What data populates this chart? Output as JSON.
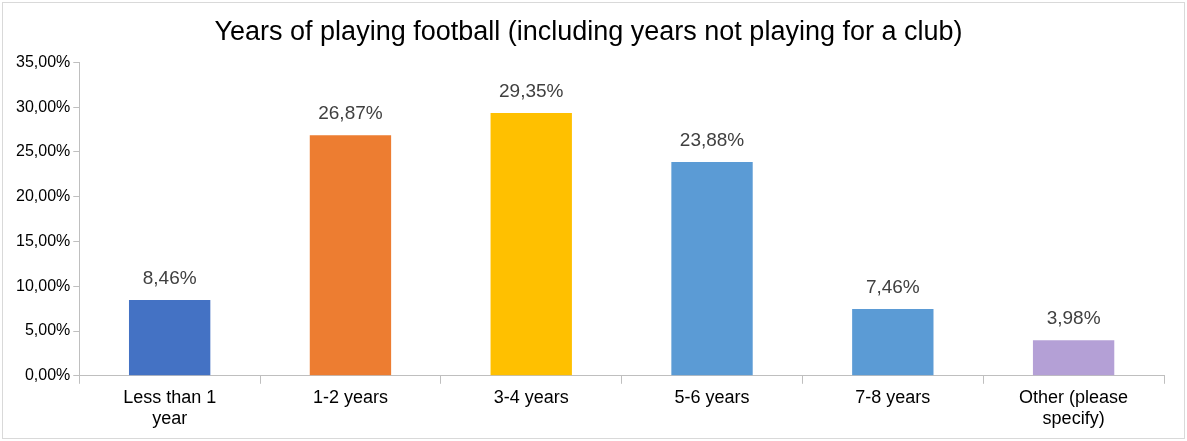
{
  "chart_data": {
    "type": "bar",
    "title": "Years of playing football (including years not playing for a club)",
    "categories": [
      "Less than 1 year",
      "1-2 years",
      "3-4 years",
      "5-6 years",
      "7-8 years",
      "Other (please specify)"
    ],
    "values": [
      8.46,
      26.87,
      29.35,
      23.88,
      7.46,
      3.98
    ],
    "colors": [
      "#4472c4",
      "#ed7d31",
      "#ffc000",
      "#5b9bd5",
      "#5b9bd5",
      "#b4a0d6"
    ],
    "value_labels": [
      "8,46%",
      "26,87%",
      "29,35%",
      "23,88%",
      "7,46%",
      "3,98%"
    ],
    "ylim": [
      0,
      35
    ],
    "yticks": [
      {
        "value": 0,
        "label": "0,00%"
      },
      {
        "value": 5,
        "label": "5,00%"
      },
      {
        "value": 10,
        "label": "10,00%"
      },
      {
        "value": 15,
        "label": "15,00%"
      },
      {
        "value": 20,
        "label": "20,00%"
      },
      {
        "value": 25,
        "label": "25,00%"
      },
      {
        "value": 30,
        "label": "30,00%"
      },
      {
        "value": 35,
        "label": "35,00%"
      }
    ],
    "grid": false,
    "legend": false
  }
}
